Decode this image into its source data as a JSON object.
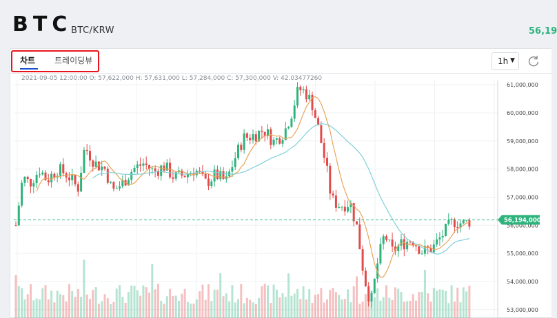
{
  "header": {
    "symbol": "BTC",
    "pair": "BTC/KRW",
    "current_price": "56,19"
  },
  "tabs": [
    {
      "label": "차트",
      "active": true
    },
    {
      "label": "트레이딩뷰",
      "active": false
    }
  ],
  "toolbar": {
    "interval": "1h",
    "interval_icon": "caret-down-icon",
    "reset_icon": "rotate-icon"
  },
  "ohlc": {
    "time": "2021-09-05 12:00:00",
    "open": "O: 57,622,000",
    "high": "H: 57,631,000",
    "low": "L: 57,284,000",
    "close": "C: 57,300,000",
    "volume": "V: 42.03477260"
  },
  "colors": {
    "up": "#2fb37d",
    "down": "#e24b4b",
    "ma_short": "#e9a35a",
    "ma_long": "#7fd0d8",
    "highlight": "#e8141b"
  },
  "chart_data": {
    "type": "candlestick",
    "y_axis_labels": [
      "61,000,000",
      "60,000,000",
      "59,000,000",
      "58,000,000",
      "57,000,000",
      "56,000,000",
      "55,000,000",
      "54,000,000",
      "53,000,000"
    ],
    "y_ticks": [
      61000000,
      60000000,
      59000000,
      58000000,
      57000000,
      56000000,
      55000000,
      54000000,
      53000000
    ],
    "ylim": [
      52700000,
      61150000
    ],
    "last_price": 56194000,
    "last_price_label": "56,194,000",
    "x_gridline_count": 9
  }
}
